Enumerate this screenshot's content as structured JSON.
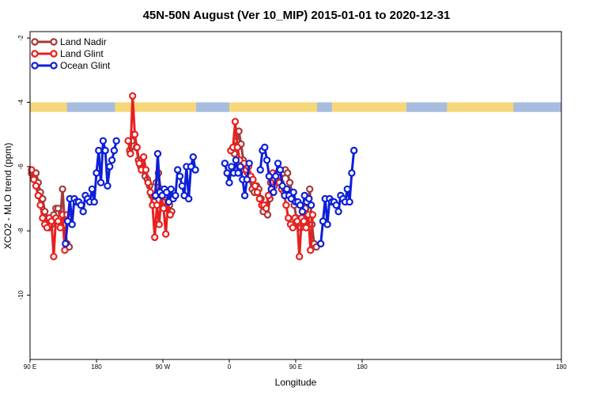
{
  "chart_data": {
    "type": "line",
    "title": "45N-50N August (Ver 10_MIP)   2015-01-01 to 2020-12-31",
    "xlabel": "Longitude",
    "ylabel": "XCO2 - MLO trend (ppm)",
    "xlim": [
      0,
      720
    ],
    "ylim": [
      -12,
      -1.8
    ],
    "x_ticks": [
      {
        "value": 0,
        "label": "90 E"
      },
      {
        "value": 90,
        "label": "180"
      },
      {
        "value": 180,
        "label": "90 W"
      },
      {
        "value": 270,
        "label": "0"
      },
      {
        "value": 360,
        "label": "90 E"
      },
      {
        "value": 450,
        "label": "180"
      }
    ],
    "y_ticks": [
      {
        "value": -2,
        "label": "-2"
      },
      {
        "value": -4,
        "label": "-4"
      },
      {
        "value": -6,
        "label": "-6"
      },
      {
        "value": -8,
        "label": "-8"
      },
      {
        "value": -10,
        "label": "-10"
      }
    ],
    "grid": false,
    "legend_position": "top-left",
    "land_ocean_band": {
      "y_range": [
        -4.3,
        -4.0
      ],
      "land_color": "#f6d77a",
      "ocean_color": "#a7bde0",
      "ocean_segments": [
        [
          50,
          115
        ],
        [
          225,
          270
        ],
        [
          389,
          409
        ],
        [
          510,
          565
        ],
        [
          655,
          720
        ]
      ]
    },
    "series": [
      {
        "name": "Land Nadir",
        "color": "#a33a3a",
        "segments": [
          [
            [
              2,
              -6.2
            ],
            [
              5,
              -6.3
            ],
            [
              8,
              -6.2
            ],
            [
              11,
              -6.5
            ],
            [
              14,
              -6.8
            ],
            [
              17,
              -7.0
            ],
            [
              20,
              -7.4
            ],
            [
              23,
              -7.6
            ],
            [
              26,
              -7.9
            ],
            [
              29,
              -7.8
            ],
            [
              32,
              -7.5
            ],
            [
              35,
              -7.3
            ],
            [
              38,
              -7.3
            ],
            [
              41,
              -7.6
            ],
            [
              44,
              -6.7
            ],
            [
              47,
              -7.8
            ],
            [
              50,
              -8.4
            ],
            [
              53,
              -8.5
            ]
          ],
          [
            [
              135,
              -5.5
            ],
            [
              138,
              -5.2
            ],
            [
              141,
              -5.0
            ],
            [
              144,
              -5.4
            ],
            [
              147,
              -5.8
            ],
            [
              150,
              -6.0
            ],
            [
              153,
              -6.1
            ],
            [
              156,
              -6.3
            ],
            [
              159,
              -6.4
            ],
            [
              162,
              -6.6
            ],
            [
              165,
              -6.9
            ],
            [
              168,
              -7.1
            ],
            [
              171,
              -6.5
            ],
            [
              174,
              -6.2
            ],
            [
              177,
              -6.7
            ],
            [
              180,
              -7.1
            ],
            [
              183,
              -7.3
            ],
            [
              186,
              -6.9
            ],
            [
              189,
              -7.2
            ],
            [
              192,
              -7.4
            ]
          ],
          [
            [
              274,
              -5.5
            ],
            [
              277,
              -5.6
            ],
            [
              280,
              -5.2
            ],
            [
              283,
              -4.9
            ],
            [
              286,
              -5.3
            ],
            [
              289,
              -5.8
            ],
            [
              292,
              -6.0
            ],
            [
              295,
              -6.2
            ],
            [
              298,
              -6.4
            ],
            [
              301,
              -6.7
            ],
            [
              304,
              -6.8
            ],
            [
              307,
              -6.6
            ],
            [
              310,
              -6.7
            ],
            [
              313,
              -7.0
            ],
            [
              316,
              -7.4
            ],
            [
              319,
              -7.2
            ],
            [
              322,
              -7.5
            ],
            [
              325,
              -7.0
            ],
            [
              328,
              -6.8
            ],
            [
              331,
              -6.6
            ]
          ],
          [
            [
              337,
              -6.3
            ],
            [
              340,
              -6.5
            ],
            [
              343,
              -6.2
            ],
            [
              346,
              -6.1
            ],
            [
              349,
              -6.2
            ],
            [
              352,
              -6.5
            ],
            [
              355,
              -6.8
            ],
            [
              358,
              -7.2
            ],
            [
              361,
              -7.6
            ],
            [
              364,
              -7.8
            ],
            [
              367,
              -7.9
            ],
            [
              370,
              -7.6
            ],
            [
              373,
              -7.3
            ],
            [
              376,
              -7.5
            ],
            [
              379,
              -6.7
            ],
            [
              382,
              -7.8
            ],
            [
              385,
              -8.4
            ],
            [
              388,
              -8.5
            ]
          ]
        ]
      },
      {
        "name": "Land Glint",
        "color": "#e8201f",
        "segments": [
          [
            [
              2,
              -6.1
            ],
            [
              5,
              -6.4
            ],
            [
              8,
              -6.6
            ],
            [
              11,
              -6.9
            ],
            [
              14,
              -7.2
            ],
            [
              17,
              -7.6
            ],
            [
              20,
              -7.8
            ],
            [
              23,
              -7.9
            ],
            [
              26,
              -7.6
            ],
            [
              29,
              -7.7
            ],
            [
              32,
              -8.8
            ],
            [
              35,
              -7.6
            ],
            [
              38,
              -7.7
            ],
            [
              41,
              -7.9
            ],
            [
              44,
              -7.5
            ],
            [
              47,
              -8.6
            ],
            [
              50,
              -7.5
            ]
          ],
          [
            [
              133,
              -5.2
            ],
            [
              136,
              -5.6
            ],
            [
              139,
              -3.8
            ],
            [
              142,
              -5.0
            ],
            [
              145,
              -5.4
            ],
            [
              148,
              -5.9
            ],
            [
              151,
              -6.1
            ],
            [
              154,
              -5.7
            ],
            [
              157,
              -6.1
            ],
            [
              160,
              -6.5
            ],
            [
              163,
              -6.8
            ],
            [
              166,
              -7.2
            ],
            [
              169,
              -8.2
            ],
            [
              172,
              -7.2
            ],
            [
              175,
              -7.8
            ],
            [
              178,
              -6.9
            ],
            [
              181,
              -7.3
            ],
            [
              184,
              -8.1
            ],
            [
              187,
              -7.1
            ],
            [
              190,
              -7.5
            ]
          ],
          [
            [
              272,
              -5.5
            ],
            [
              275,
              -5.4
            ],
            [
              278,
              -4.6
            ],
            [
              281,
              -5.4
            ],
            [
              284,
              -5.8
            ],
            [
              287,
              -6.1
            ],
            [
              290,
              -5.9
            ],
            [
              293,
              -6.1
            ],
            [
              296,
              -6.0
            ],
            [
              299,
              -6.3
            ],
            [
              302,
              -6.4
            ],
            [
              305,
              -6.6
            ],
            [
              308,
              -6.8
            ],
            [
              311,
              -7.0
            ],
            [
              314,
              -7.2
            ],
            [
              317,
              -7.2
            ],
            [
              320,
              -7.3
            ],
            [
              323,
              -6.9
            ],
            [
              326,
              -6.5
            ],
            [
              329,
              -6.2
            ]
          ],
          [
            [
              335,
              -6.2
            ],
            [
              338,
              -6.5
            ],
            [
              341,
              -6.7
            ],
            [
              344,
              -6.8
            ],
            [
              347,
              -7.2
            ],
            [
              350,
              -7.6
            ],
            [
              353,
              -7.8
            ],
            [
              356,
              -7.9
            ],
            [
              359,
              -7.6
            ],
            [
              362,
              -7.7
            ],
            [
              365,
              -8.8
            ],
            [
              368,
              -7.6
            ],
            [
              371,
              -7.7
            ],
            [
              374,
              -7.9
            ],
            [
              377,
              -7.5
            ],
            [
              380,
              -8.6
            ],
            [
              383,
              -7.5
            ]
          ]
        ]
      },
      {
        "name": "Ocean Glint",
        "color": "#0d1fd9",
        "segments": [
          [
            [
              48,
              -8.4
            ],
            [
              51,
              -7.7
            ],
            [
              54,
              -7.0
            ],
            [
              57,
              -7.8
            ],
            [
              60,
              -7.0
            ],
            [
              63,
              -7.1
            ],
            [
              66,
              -7.1
            ],
            [
              69,
              -7.2
            ],
            [
              72,
              -7.4
            ],
            [
              75,
              -6.9
            ],
            [
              78,
              -7.0
            ],
            [
              81,
              -7.1
            ],
            [
              84,
              -6.7
            ],
            [
              87,
              -7.1
            ],
            [
              90,
              -6.2
            ],
            [
              93,
              -5.5
            ],
            [
              96,
              -6.5
            ],
            [
              99,
              -5.2
            ],
            [
              102,
              -5.5
            ],
            [
              105,
              -6.6
            ],
            [
              108,
              -6.0
            ],
            [
              111,
              -5.8
            ],
            [
              114,
              -5.5
            ],
            [
              117,
              -5.2
            ]
          ],
          [
            [
              170,
              -6.9
            ],
            [
              173,
              -5.6
            ],
            [
              176,
              -6.8
            ],
            [
              179,
              -6.9
            ],
            [
              182,
              -6.7
            ],
            [
              185,
              -6.8
            ],
            [
              188,
              -7.1
            ],
            [
              191,
              -6.7
            ],
            [
              194,
              -7.0
            ],
            [
              197,
              -6.9
            ],
            [
              200,
              -6.1
            ],
            [
              203,
              -6.3
            ],
            [
              206,
              -6.6
            ],
            [
              209,
              -6.9
            ],
            [
              212,
              -6.0
            ],
            [
              215,
              -7.0
            ],
            [
              218,
              -6.0
            ],
            [
              221,
              -5.7
            ],
            [
              224,
              -6.1
            ]
          ],
          [
            [
              264,
              -5.9
            ],
            [
              267,
              -6.2
            ],
            [
              270,
              -6.5
            ],
            [
              273,
              -6.0
            ],
            [
              276,
              -6.2
            ],
            [
              279,
              -5.8
            ],
            [
              282,
              -6.2
            ],
            [
              285,
              -6.0
            ],
            [
              288,
              -6.4
            ],
            [
              291,
              -6.9
            ],
            [
              294,
              -6.4
            ],
            [
              297,
              -5.9
            ]
          ],
          [
            [
              312,
              -6.1
            ],
            [
              315,
              -5.5
            ],
            [
              318,
              -5.4
            ],
            [
              321,
              -5.8
            ],
            [
              324,
              -6.3
            ],
            [
              327,
              -6.7
            ],
            [
              330,
              -6.8
            ],
            [
              333,
              -6.3
            ],
            [
              336,
              -5.9
            ],
            [
              339,
              -6.1
            ],
            [
              342,
              -6.6
            ],
            [
              345,
              -6.9
            ],
            [
              348,
              -6.7
            ],
            [
              351,
              -6.9
            ],
            [
              354,
              -7.0
            ],
            [
              357,
              -6.8
            ],
            [
              360,
              -7.1
            ],
            [
              363,
              -7.1
            ],
            [
              366,
              -7.2
            ],
            [
              369,
              -7.4
            ],
            [
              372,
              -6.9
            ],
            [
              375,
              -7.1
            ],
            [
              378,
              -7.0
            ],
            [
              381,
              -7.2
            ]
          ],
          [
            [
              394,
              -8.4
            ],
            [
              397,
              -7.7
            ],
            [
              400,
              -7.0
            ],
            [
              403,
              -7.8
            ],
            [
              406,
              -7.0
            ],
            [
              409,
              -7.1
            ],
            [
              412,
              -7.1
            ],
            [
              415,
              -7.2
            ],
            [
              418,
              -7.4
            ],
            [
              421,
              -6.9
            ],
            [
              424,
              -7.0
            ],
            [
              427,
              -7.1
            ],
            [
              430,
              -6.7
            ],
            [
              433,
              -7.1
            ],
            [
              436,
              -6.2
            ],
            [
              439,
              -5.5
            ]
          ]
        ]
      }
    ]
  }
}
